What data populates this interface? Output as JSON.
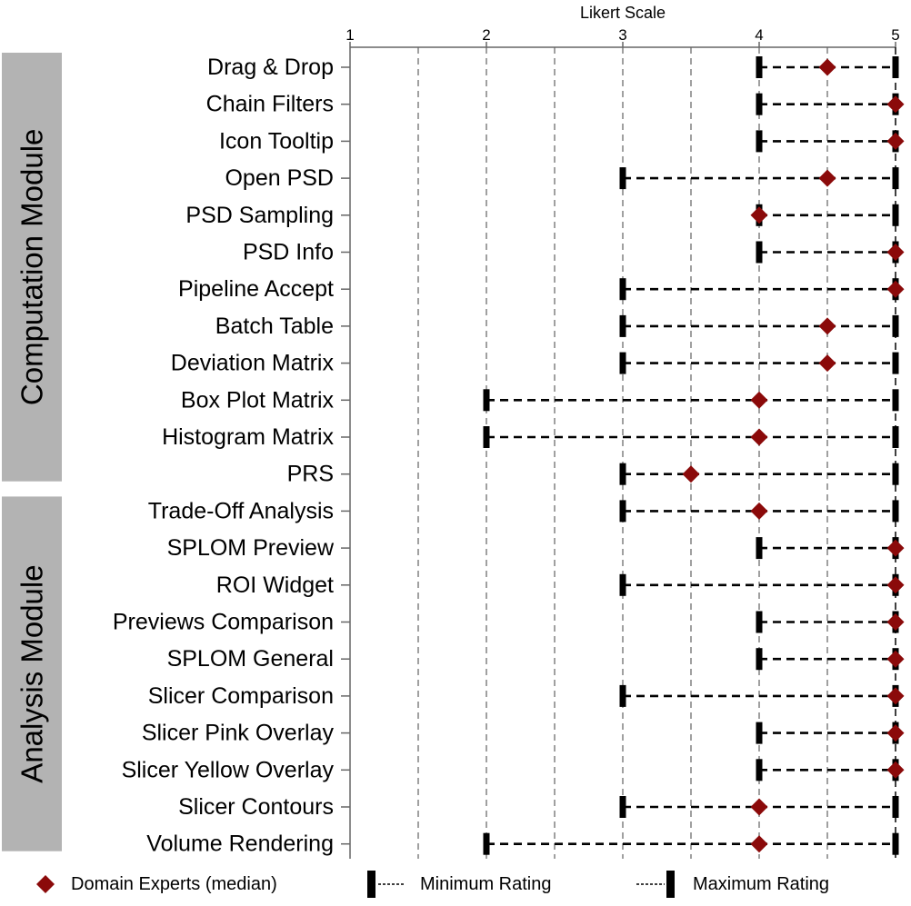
{
  "chart_data": {
    "type": "dot-range",
    "title": "",
    "xlabel": "Likert Scale",
    "xlim": [
      1,
      5
    ],
    "xticks": [
      1,
      2,
      3,
      4,
      5
    ],
    "grid_lines": [
      1.5,
      2,
      2.5,
      3,
      3.5,
      4,
      4.5
    ],
    "groups": [
      {
        "name": "Computation Module",
        "start": 0,
        "end": 11
      },
      {
        "name": "Analysis Module",
        "start": 12,
        "end": 21
      }
    ],
    "rows": [
      {
        "label": "Drag & Drop",
        "min": 4,
        "max": 5,
        "median": 4.5
      },
      {
        "label": "Chain Filters",
        "min": 4,
        "max": 5,
        "median": 5
      },
      {
        "label": "Icon Tooltip",
        "min": 4,
        "max": 5,
        "median": 5
      },
      {
        "label": "Open PSD",
        "min": 3,
        "max": 5,
        "median": 4.5
      },
      {
        "label": "PSD Sampling",
        "min": 4,
        "max": 5,
        "median": 4
      },
      {
        "label": "PSD Info",
        "min": 4,
        "max": 5,
        "median": 5
      },
      {
        "label": "Pipeline Accept",
        "min": 3,
        "max": 5,
        "median": 5
      },
      {
        "label": "Batch Table",
        "min": 3,
        "max": 5,
        "median": 4.5
      },
      {
        "label": "Deviation Matrix",
        "min": 3,
        "max": 5,
        "median": 4.5
      },
      {
        "label": "Box Plot Matrix",
        "min": 2,
        "max": 5,
        "median": 4
      },
      {
        "label": "Histogram Matrix",
        "min": 2,
        "max": 5,
        "median": 4
      },
      {
        "label": "PRS",
        "min": 3,
        "max": 5,
        "median": 3.5
      },
      {
        "label": "Trade-Off Analysis",
        "min": 3,
        "max": 5,
        "median": 4
      },
      {
        "label": "SPLOM Preview",
        "min": 4,
        "max": 5,
        "median": 5
      },
      {
        "label": "ROI Widget",
        "min": 3,
        "max": 5,
        "median": 5
      },
      {
        "label": "Previews Comparison",
        "min": 4,
        "max": 5,
        "median": 5
      },
      {
        "label": "SPLOM General",
        "min": 4,
        "max": 5,
        "median": 5
      },
      {
        "label": "Slicer Comparison",
        "min": 3,
        "max": 5,
        "median": 5
      },
      {
        "label": "Slicer Pink Overlay",
        "min": 4,
        "max": 5,
        "median": 5
      },
      {
        "label": "Slicer Yellow Overlay",
        "min": 4,
        "max": 5,
        "median": 5
      },
      {
        "label": "Slicer Contours",
        "min": 3,
        "max": 5,
        "median": 4
      },
      {
        "label": "Volume Rendering",
        "min": 2,
        "max": 5,
        "median": 4
      }
    ],
    "legend": {
      "position": "bottom",
      "median_label": "Domain Experts (median)",
      "min_label": "Minimum Rating",
      "max_label": "Maximum Rating"
    },
    "colors": {
      "median": "#8b0a0a",
      "marker": "#000000",
      "grid": "#888888",
      "group_bar": "#b3b3b3"
    }
  }
}
